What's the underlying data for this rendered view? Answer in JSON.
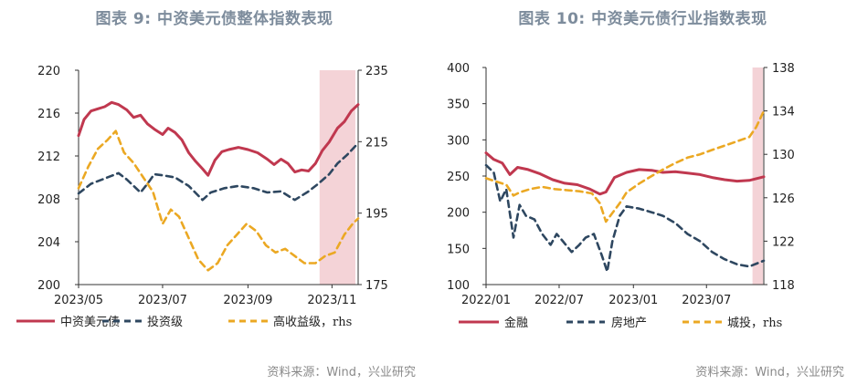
{
  "chart_data": [
    {
      "type": "line",
      "title": "图表 9:  中资美元债整体指数表现",
      "source": "资料来源：Wind，兴业研究",
      "x_ticks": [
        "2023/05",
        "2023/07",
        "2023/09",
        "2023/11"
      ],
      "x_range": [
        "2023-05",
        "2023-11-20"
      ],
      "ylim_left": [
        200,
        220
      ],
      "yticks_left": [
        "200",
        "204",
        "208",
        "212",
        "216",
        "220"
      ],
      "ylim_right": [
        175,
        235
      ],
      "yticks_right": [
        "175",
        "195",
        "215",
        "235"
      ],
      "shaded_region": [
        "2023-10-23",
        "2023-11-18"
      ],
      "legend": [
        "中资美元债",
        "投资级",
        "高收益级，rhs"
      ],
      "series": [
        {
          "name": "中资美元债",
          "axis": "left",
          "style": "solid",
          "color": "#c0384f",
          "values": [
            [
              "2023-05-01",
              213.9
            ],
            [
              "2023-05-05",
              215.4
            ],
            [
              "2023-05-10",
              216.2
            ],
            [
              "2023-05-15",
              216.4
            ],
            [
              "2023-05-20",
              216.6
            ],
            [
              "2023-05-25",
              217.0
            ],
            [
              "2023-05-30",
              216.8
            ],
            [
              "2023-06-05",
              216.3
            ],
            [
              "2023-06-10",
              215.6
            ],
            [
              "2023-06-15",
              215.8
            ],
            [
              "2023-06-20",
              215.0
            ],
            [
              "2023-06-25",
              214.5
            ],
            [
              "2023-07-01",
              214.0
            ],
            [
              "2023-07-05",
              214.6
            ],
            [
              "2023-07-10",
              214.2
            ],
            [
              "2023-07-15",
              213.5
            ],
            [
              "2023-07-20",
              212.3
            ],
            [
              "2023-07-25",
              211.5
            ],
            [
              "2023-07-30",
              210.8
            ],
            [
              "2023-08-03",
              210.2
            ],
            [
              "2023-08-08",
              211.6
            ],
            [
              "2023-08-13",
              212.4
            ],
            [
              "2023-08-18",
              212.6
            ],
            [
              "2023-08-25",
              212.8
            ],
            [
              "2023-09-01",
              212.6
            ],
            [
              "2023-09-08",
              212.3
            ],
            [
              "2023-09-15",
              211.7
            ],
            [
              "2023-09-20",
              211.2
            ],
            [
              "2023-09-25",
              211.7
            ],
            [
              "2023-09-30",
              211.3
            ],
            [
              "2023-10-05",
              210.5
            ],
            [
              "2023-10-10",
              210.7
            ],
            [
              "2023-10-15",
              210.6
            ],
            [
              "2023-10-20",
              211.3
            ],
            [
              "2023-10-25",
              212.5
            ],
            [
              "2023-10-30",
              213.3
            ],
            [
              "2023-11-05",
              214.6
            ],
            [
              "2023-11-10",
              215.2
            ],
            [
              "2023-11-15",
              216.2
            ],
            [
              "2023-11-20",
              216.8
            ]
          ]
        },
        {
          "name": "投资级",
          "axis": "left",
          "style": "dashed",
          "color": "#2e4760",
          "values": [
            [
              "2023-05-01",
              208.5
            ],
            [
              "2023-05-10",
              209.4
            ],
            [
              "2023-05-20",
              209.9
            ],
            [
              "2023-05-30",
              210.4
            ],
            [
              "2023-06-05",
              209.8
            ],
            [
              "2023-06-15",
              208.6
            ],
            [
              "2023-06-20",
              209.4
            ],
            [
              "2023-06-25",
              210.3
            ],
            [
              "2023-07-01",
              210.2
            ],
            [
              "2023-07-10",
              210.0
            ],
            [
              "2023-07-20",
              209.2
            ],
            [
              "2023-07-30",
              207.9
            ],
            [
              "2023-08-05",
              208.6
            ],
            [
              "2023-08-15",
              209.0
            ],
            [
              "2023-08-25",
              209.2
            ],
            [
              "2023-09-05",
              209.0
            ],
            [
              "2023-09-15",
              208.6
            ],
            [
              "2023-09-25",
              208.7
            ],
            [
              "2023-10-05",
              207.9
            ],
            [
              "2023-10-15",
              208.7
            ],
            [
              "2023-10-22",
              209.4
            ],
            [
              "2023-10-30",
              210.3
            ],
            [
              "2023-11-05",
              211.3
            ],
            [
              "2023-11-12",
              212.1
            ],
            [
              "2023-11-20",
              213.2
            ]
          ]
        },
        {
          "name": "高收益级，rhs",
          "axis": "right",
          "style": "dashed",
          "color": "#eba823",
          "values": [
            [
              "2023-05-01",
              202.0
            ],
            [
              "2023-05-08",
              208.0
            ],
            [
              "2023-05-15",
              213.0
            ],
            [
              "2023-05-22",
              215.5
            ],
            [
              "2023-05-28",
              218.0
            ],
            [
              "2023-06-03",
              212.0
            ],
            [
              "2023-06-10",
              209.0
            ],
            [
              "2023-06-17",
              205.0
            ],
            [
              "2023-06-24",
              201.0
            ],
            [
              "2023-07-01",
              192.0
            ],
            [
              "2023-07-07",
              196.0
            ],
            [
              "2023-07-13",
              194.0
            ],
            [
              "2023-07-20",
              188.0
            ],
            [
              "2023-07-27",
              182.0
            ],
            [
              "2023-08-03",
              179.0
            ],
            [
              "2023-08-10",
              181.0
            ],
            [
              "2023-08-17",
              186.0
            ],
            [
              "2023-08-24",
              189.0
            ],
            [
              "2023-08-31",
              192.0
            ],
            [
              "2023-09-07",
              190.0
            ],
            [
              "2023-09-14",
              186.0
            ],
            [
              "2023-09-21",
              184.0
            ],
            [
              "2023-09-28",
              185.0
            ],
            [
              "2023-10-05",
              183.0
            ],
            [
              "2023-10-12",
              181.0
            ],
            [
              "2023-10-20",
              181.0
            ],
            [
              "2023-10-27",
              183.0
            ],
            [
              "2023-11-03",
              184.0
            ],
            [
              "2023-11-10",
              189.0
            ],
            [
              "2023-11-16",
              192.0
            ],
            [
              "2023-11-20",
              193.5
            ]
          ]
        }
      ]
    },
    {
      "type": "line",
      "title": "图表 10: 中资美元债行业指数表现",
      "source": "资料来源：Wind，兴业研究",
      "x_ticks": [
        "2022/01",
        "2022/07",
        "2023/01",
        "2023/07"
      ],
      "x_range": [
        "2022-01",
        "2023-11-20"
      ],
      "ylim_left": [
        100,
        400
      ],
      "yticks_left": [
        "100",
        "150",
        "200",
        "250",
        "300",
        "350",
        "400"
      ],
      "ylim_right": [
        118,
        138
      ],
      "yticks_right": [
        "118",
        "122",
        "126",
        "130",
        "134",
        "138"
      ],
      "shaded_region": [
        "2023-10-23",
        "2023-11-18"
      ],
      "legend": [
        "金融",
        "房地产",
        "城投，rhs"
      ],
      "series": [
        {
          "name": "金融",
          "axis": "left",
          "style": "solid",
          "color": "#c0384f",
          "values": [
            [
              "2022-01-01",
              282
            ],
            [
              "2022-01-20",
              273
            ],
            [
              "2022-02-10",
              268
            ],
            [
              "2022-03-01",
              252
            ],
            [
              "2022-03-20",
              262
            ],
            [
              "2022-04-15",
              259
            ],
            [
              "2022-05-15",
              253
            ],
            [
              "2022-06-15",
              245
            ],
            [
              "2022-07-15",
              240
            ],
            [
              "2022-08-15",
              238
            ],
            [
              "2022-09-15",
              232
            ],
            [
              "2022-10-10",
              225
            ],
            [
              "2022-10-25",
              228
            ],
            [
              "2022-11-15",
              248
            ],
            [
              "2022-12-15",
              255
            ],
            [
              "2023-01-15",
              259
            ],
            [
              "2023-02-15",
              258
            ],
            [
              "2023-03-15",
              255
            ],
            [
              "2023-04-15",
              256
            ],
            [
              "2023-05-15",
              254
            ],
            [
              "2023-06-15",
              252
            ],
            [
              "2023-07-15",
              248
            ],
            [
              "2023-08-15",
              245
            ],
            [
              "2023-09-15",
              243
            ],
            [
              "2023-10-15",
              244
            ],
            [
              "2023-11-20",
              249
            ]
          ]
        },
        {
          "name": "房地产",
          "axis": "left",
          "style": "dashed",
          "color": "#2e4760",
          "values": [
            [
              "2022-01-01",
              265
            ],
            [
              "2022-01-20",
              255
            ],
            [
              "2022-02-05",
              215
            ],
            [
              "2022-02-20",
              232
            ],
            [
              "2022-03-10",
              165
            ],
            [
              "2022-03-25",
              210
            ],
            [
              "2022-04-10",
              195
            ],
            [
              "2022-05-01",
              190
            ],
            [
              "2022-05-20",
              170
            ],
            [
              "2022-06-10",
              155
            ],
            [
              "2022-06-25",
              170
            ],
            [
              "2022-07-10",
              160
            ],
            [
              "2022-08-01",
              145
            ],
            [
              "2022-08-20",
              155
            ],
            [
              "2022-09-05",
              165
            ],
            [
              "2022-09-25",
              170
            ],
            [
              "2022-10-15",
              140
            ],
            [
              "2022-10-28",
              118
            ],
            [
              "2022-11-10",
              160
            ],
            [
              "2022-11-28",
              195
            ],
            [
              "2022-12-15",
              208
            ],
            [
              "2023-01-15",
              205
            ],
            [
              "2023-02-15",
              200
            ],
            [
              "2023-03-15",
              195
            ],
            [
              "2023-04-15",
              185
            ],
            [
              "2023-05-15",
              170
            ],
            [
              "2023-06-15",
              160
            ],
            [
              "2023-07-15",
              145
            ],
            [
              "2023-08-15",
              135
            ],
            [
              "2023-09-15",
              128
            ],
            [
              "2023-10-15",
              125
            ],
            [
              "2023-11-20",
              133
            ]
          ]
        },
        {
          "name": "城投，rhs",
          "axis": "right",
          "style": "dashed",
          "color": "#eba823",
          "values": [
            [
              "2022-01-01",
              127.8
            ],
            [
              "2022-01-25",
              127.5
            ],
            [
              "2022-02-20",
              127.2
            ],
            [
              "2022-03-10",
              126.2
            ],
            [
              "2022-03-25",
              126.5
            ],
            [
              "2022-04-20",
              126.8
            ],
            [
              "2022-05-20",
              127.0
            ],
            [
              "2022-06-20",
              126.8
            ],
            [
              "2022-07-20",
              126.7
            ],
            [
              "2022-08-20",
              126.6
            ],
            [
              "2022-09-20",
              126.4
            ],
            [
              "2022-10-10",
              125.5
            ],
            [
              "2022-10-25",
              123.8
            ],
            [
              "2022-11-10",
              124.6
            ],
            [
              "2022-11-28",
              125.5
            ],
            [
              "2022-12-15",
              126.5
            ],
            [
              "2023-01-15",
              127.3
            ],
            [
              "2023-02-15",
              128.0
            ],
            [
              "2023-03-15",
              128.6
            ],
            [
              "2023-04-15",
              129.2
            ],
            [
              "2023-05-15",
              129.7
            ],
            [
              "2023-06-15",
              130.0
            ],
            [
              "2023-07-15",
              130.4
            ],
            [
              "2023-08-15",
              130.8
            ],
            [
              "2023-09-15",
              131.2
            ],
            [
              "2023-10-15",
              131.6
            ],
            [
              "2023-11-01",
              132.5
            ],
            [
              "2023-11-20",
              134.0
            ]
          ]
        }
      ]
    }
  ]
}
